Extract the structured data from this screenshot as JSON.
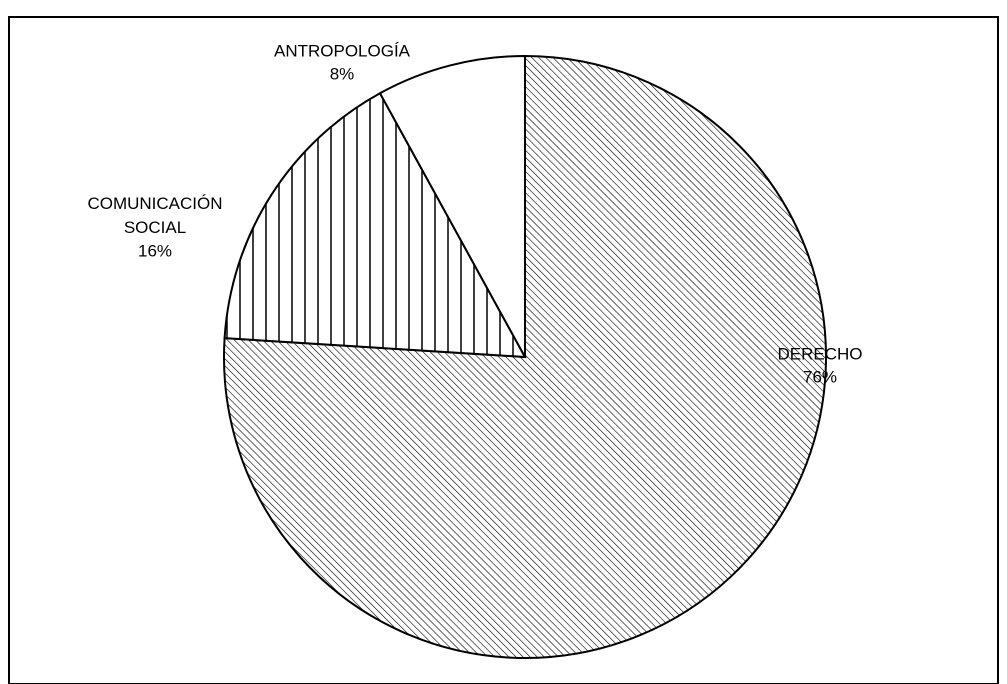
{
  "chart_data": {
    "type": "pie",
    "categories": [
      "DERECHO",
      "COMUNICACIÓN SOCIAL",
      "ANTROPOLOGÍA"
    ],
    "values": [
      76,
      16,
      8
    ],
    "value_labels": [
      "76%",
      "16%",
      "8%"
    ],
    "patterns": [
      "diagonal",
      "vertical",
      "none"
    ],
    "start_angle": 0,
    "direction": "clockwise"
  }
}
